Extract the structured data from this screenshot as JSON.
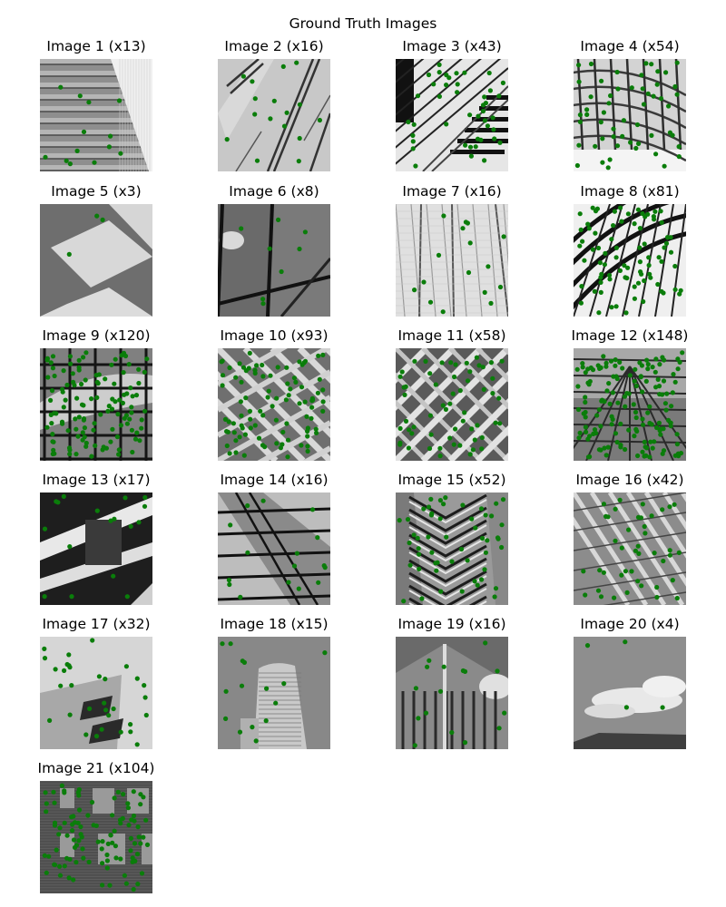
{
  "figure": {
    "suptitle": "Ground Truth Images",
    "marker_color": "#0a7d0a"
  },
  "chart_data": {
    "type": "image-grid",
    "title": "Ground Truth Images",
    "panels": [
      {
        "title": "Image 1 (x13)",
        "count": 13,
        "scene": "stairs"
      },
      {
        "title": "Image 2 (x16)",
        "count": 16,
        "scene": "facade-diagonal"
      },
      {
        "title": "Image 3 (x43)",
        "count": 43,
        "scene": "diagonal-grid"
      },
      {
        "title": "Image 4 (x54)",
        "count": 54,
        "scene": "curved-roof"
      },
      {
        "title": "Image 5 (x3)",
        "count": 3,
        "scene": "checker"
      },
      {
        "title": "Image 6 (x8)",
        "count": 8,
        "scene": "glass-window"
      },
      {
        "title": "Image 7 (x16)",
        "count": 16,
        "scene": "pale-panels"
      },
      {
        "title": "Image 8 (x81)",
        "count": 81,
        "scene": "arc-beams"
      },
      {
        "title": "Image 9 (x120)",
        "count": 120,
        "scene": "square-grid"
      },
      {
        "title": "Image 10 (x93)",
        "count": 93,
        "scene": "diagonal-lattice"
      },
      {
        "title": "Image 11 (x58)",
        "count": 58,
        "scene": "diamond-lattice"
      },
      {
        "title": "Image 12 (x148)",
        "count": 148,
        "scene": "ceiling-grid"
      },
      {
        "title": "Image 13 (x17)",
        "count": 17,
        "scene": "concrete-beams"
      },
      {
        "title": "Image 14 (x16)",
        "count": 16,
        "scene": "glass-slant"
      },
      {
        "title": "Image 15 (x52)",
        "count": 52,
        "scene": "tower-chevron"
      },
      {
        "title": "Image 16 (x42)",
        "count": 42,
        "scene": "slanted-louvers"
      },
      {
        "title": "Image 17 (x32)",
        "count": 32,
        "scene": "building-windows"
      },
      {
        "title": "Image 18 (x15)",
        "count": 15,
        "scene": "cylinder-tower"
      },
      {
        "title": "Image 19 (x16)",
        "count": 16,
        "scene": "corner-building"
      },
      {
        "title": "Image 20 (x4)",
        "count": 4,
        "scene": "sky-clouds"
      },
      {
        "title": "Image 21 (x104)",
        "count": 104,
        "scene": "brick-windows"
      }
    ]
  }
}
